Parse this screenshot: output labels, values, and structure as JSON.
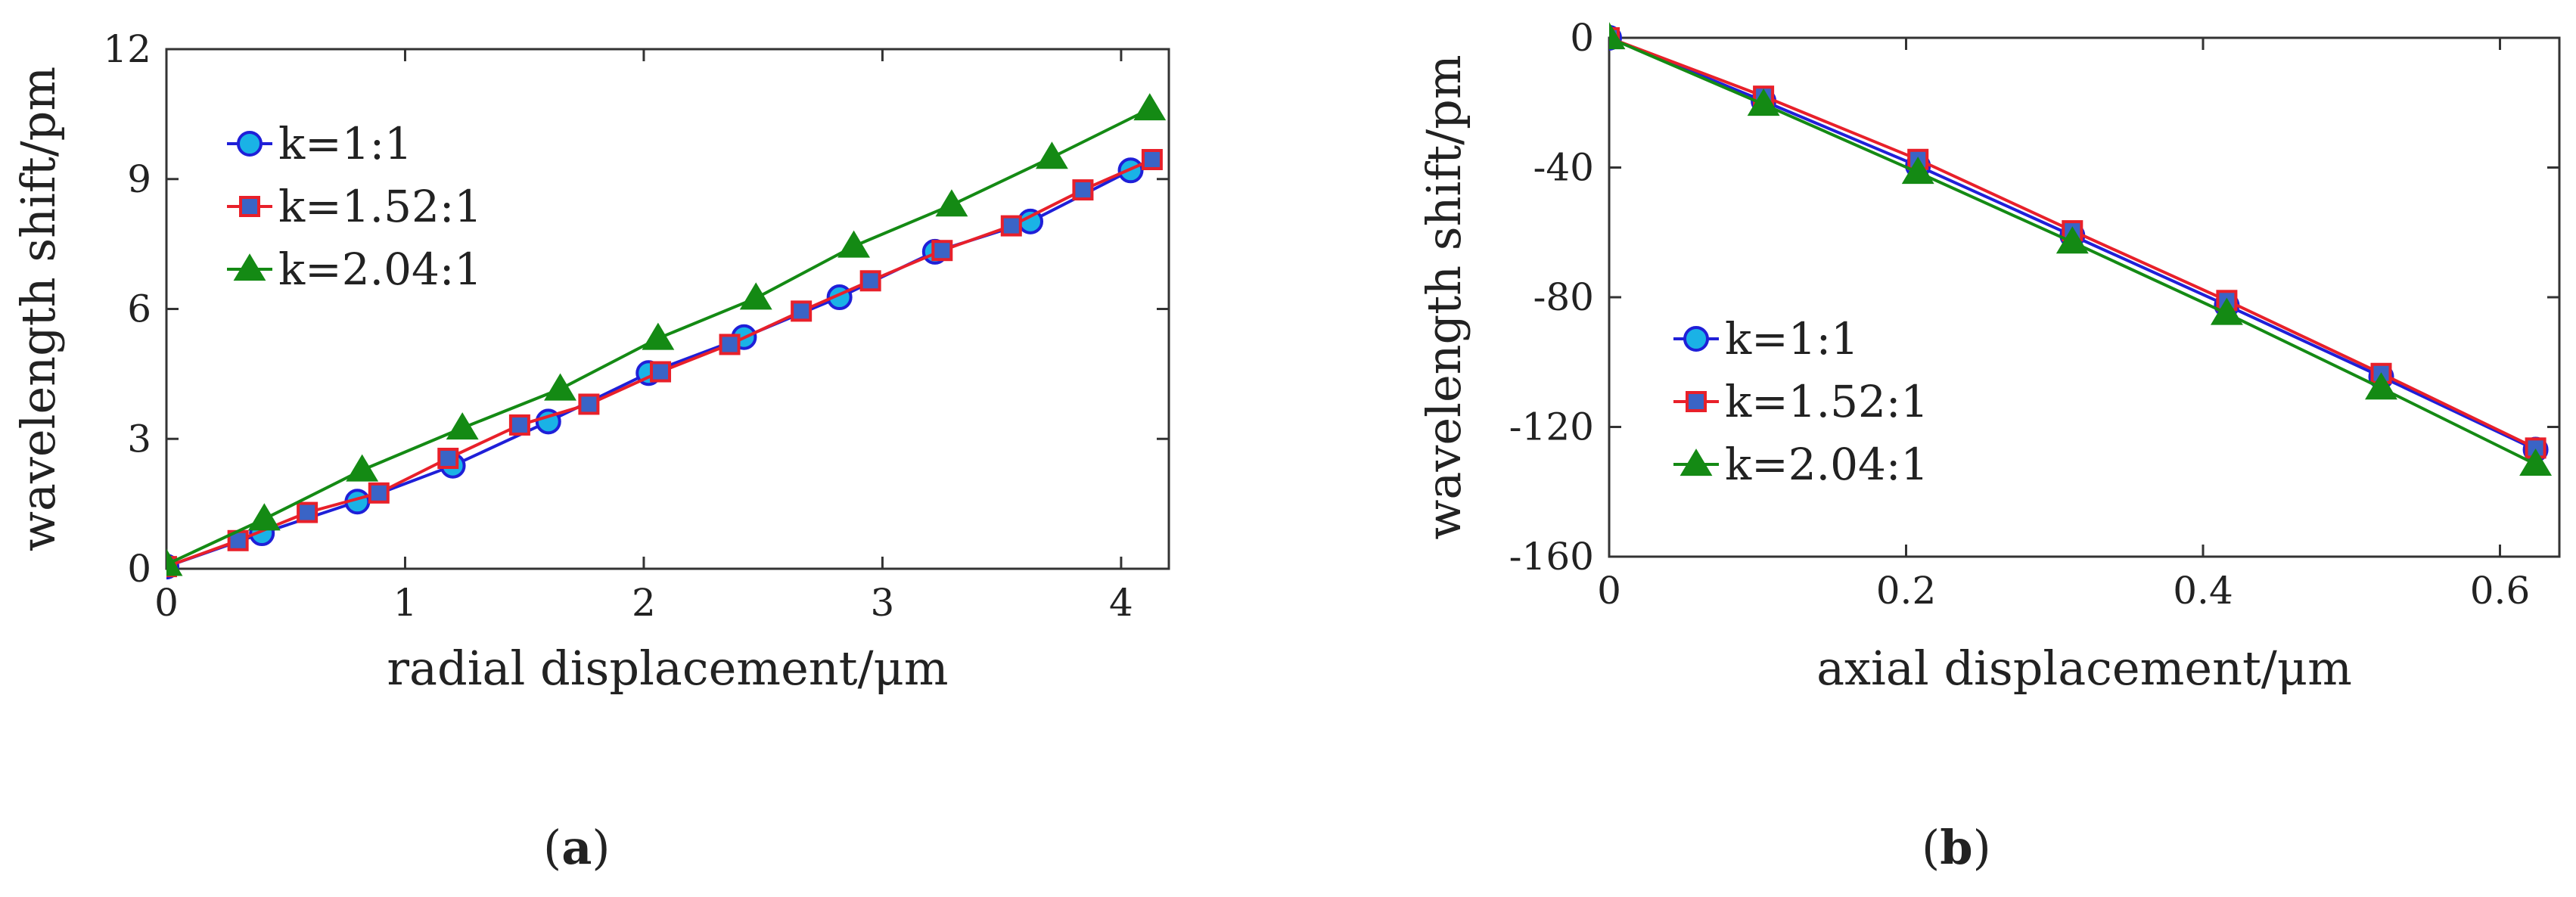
{
  "chart_data": [
    {
      "panel_label": "(a)",
      "type": "line",
      "xlabel": "radial displacement/μm",
      "ylabel": "wavelength shift/pm",
      "xlim": [
        0,
        4.2
      ],
      "ylim": [
        0,
        12
      ],
      "xticks": [
        0,
        1,
        2,
        3,
        4
      ],
      "yticks": [
        0,
        3,
        6,
        9,
        12
      ],
      "legend_position": "top-left",
      "series": [
        {
          "name": "k=1:1",
          "color": "#1f1fd8",
          "marker": "circle",
          "marker_fill": "#1ab2e6",
          "x": [
            0,
            0.4,
            0.8,
            1.2,
            1.6,
            2.02,
            2.42,
            2.82,
            3.22,
            3.62,
            4.04
          ],
          "y": [
            0.05,
            0.82,
            1.55,
            2.38,
            3.4,
            4.52,
            5.35,
            6.27,
            7.32,
            8.02,
            9.2
          ]
        },
        {
          "name": "k=1.52:1",
          "color": "#e8202a",
          "marker": "square",
          "marker_fill": "#3a64c6",
          "x": [
            0,
            0.3,
            0.59,
            0.89,
            1.18,
            1.48,
            1.77,
            2.07,
            2.36,
            2.66,
            2.95,
            3.25,
            3.54,
            3.84,
            4.13
          ],
          "y": [
            0.05,
            0.65,
            1.3,
            1.75,
            2.55,
            3.32,
            3.8,
            4.55,
            5.18,
            5.95,
            6.65,
            7.35,
            7.92,
            8.75,
            9.45
          ]
        },
        {
          "name": "k=2.04:1",
          "color": "#148a14",
          "marker": "triangle",
          "marker_fill": "#148a14",
          "x": [
            0,
            0.41,
            0.82,
            1.24,
            1.65,
            2.06,
            2.47,
            2.88,
            3.29,
            3.71,
            4.12
          ],
          "y": [
            0.1,
            1.15,
            2.28,
            3.25,
            4.15,
            5.32,
            6.25,
            7.45,
            8.4,
            9.5,
            10.62
          ]
        }
      ]
    },
    {
      "panel_label": "(b)",
      "type": "line",
      "xlabel": "axial displacement/μm",
      "ylabel": "wavelength shift/pm",
      "xlim": [
        0,
        0.64
      ],
      "ylim": [
        -160,
        0
      ],
      "xticks": [
        0,
        0.2,
        0.4,
        0.6
      ],
      "yticks": [
        0,
        -40,
        -80,
        -120,
        -160
      ],
      "legend_position": "bottom-left",
      "series": [
        {
          "name": "k=1:1",
          "color": "#1f1fd8",
          "marker": "circle",
          "marker_fill": "#1ab2e6",
          "x": [
            0,
            0.104,
            0.208,
            0.312,
            0.416,
            0.52,
            0.624
          ],
          "y": [
            0,
            -19.5,
            -39.5,
            -61,
            -82.5,
            -104.5,
            -127
          ]
        },
        {
          "name": "k=1.52:1",
          "color": "#e8202a",
          "marker": "square",
          "marker_fill": "#3a64c6",
          "x": [
            0,
            0.104,
            0.208,
            0.312,
            0.416,
            0.52,
            0.624
          ],
          "y": [
            0,
            -18,
            -37.5,
            -59.5,
            -81,
            -103.5,
            -126.5
          ]
        },
        {
          "name": "k=2.04:1",
          "color": "#148a14",
          "marker": "triangle",
          "marker_fill": "#148a14",
          "x": [
            0,
            0.104,
            0.208,
            0.312,
            0.416,
            0.52,
            0.624
          ],
          "y": [
            0,
            -20.5,
            -41.5,
            -63,
            -85,
            -108,
            -131.5
          ]
        }
      ]
    }
  ]
}
